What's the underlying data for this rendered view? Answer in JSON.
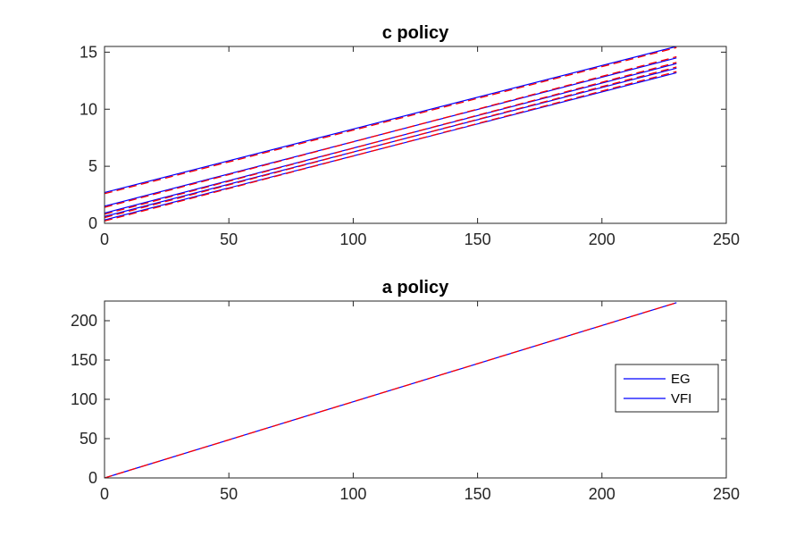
{
  "chart_data": [
    {
      "type": "line",
      "title": "c policy",
      "xlabel": "",
      "ylabel": "",
      "xlim": [
        0,
        250
      ],
      "ylim": [
        0,
        15.5
      ],
      "xticks": [
        0,
        50,
        100,
        150,
        200,
        250
      ],
      "yticks": [
        0,
        5,
        10,
        15
      ],
      "grid": false,
      "series": [
        {
          "x": [
            0,
            230
          ],
          "y": [
            2.7,
            15.5
          ],
          "color": "#0000ff",
          "style": "solid"
        },
        {
          "x": [
            0,
            230
          ],
          "y": [
            1.5,
            14.5
          ],
          "color": "#0000ff",
          "style": "solid"
        },
        {
          "x": [
            0,
            230
          ],
          "y": [
            0.9,
            14.0
          ],
          "color": "#0000ff",
          "style": "solid"
        },
        {
          "x": [
            0,
            230
          ],
          "y": [
            0.6,
            13.6
          ],
          "color": "#0000ff",
          "style": "solid"
        },
        {
          "x": [
            0,
            230
          ],
          "y": [
            0.3,
            13.2
          ],
          "color": "#0000ff",
          "style": "solid"
        },
        {
          "x": [
            0,
            230
          ],
          "y": [
            2.6,
            15.4
          ],
          "color": "#ff0000",
          "style": "dashed"
        },
        {
          "x": [
            0,
            230
          ],
          "y": [
            1.4,
            14.6
          ],
          "color": "#ff0000",
          "style": "dashed"
        },
        {
          "x": [
            0,
            230
          ],
          "y": [
            0.8,
            14.1
          ],
          "color": "#ff0000",
          "style": "dashed"
        },
        {
          "x": [
            0,
            230
          ],
          "y": [
            0.5,
            13.7
          ],
          "color": "#ff0000",
          "style": "dashed"
        },
        {
          "x": [
            0,
            230
          ],
          "y": [
            0.2,
            13.3
          ],
          "color": "#ff0000",
          "style": "dashed"
        }
      ]
    },
    {
      "type": "line",
      "title": "a policy",
      "xlabel": "",
      "ylabel": "",
      "xlim": [
        0,
        250
      ],
      "ylim": [
        0,
        225
      ],
      "xticks": [
        0,
        50,
        100,
        150,
        200,
        250
      ],
      "yticks": [
        0,
        50,
        100,
        150,
        200
      ],
      "grid": false,
      "legend": {
        "position": "east",
        "entries": [
          "EG",
          "VFI"
        ]
      },
      "series": [
        {
          "name": "EG",
          "x": [
            0,
            230
          ],
          "y": [
            0,
            223
          ],
          "color": "#0000ff",
          "style": "solid"
        },
        {
          "name": "VFI",
          "x": [
            0,
            230
          ],
          "y": [
            0,
            223
          ],
          "color": "#ff0000",
          "style": "dashed"
        }
      ]
    }
  ]
}
